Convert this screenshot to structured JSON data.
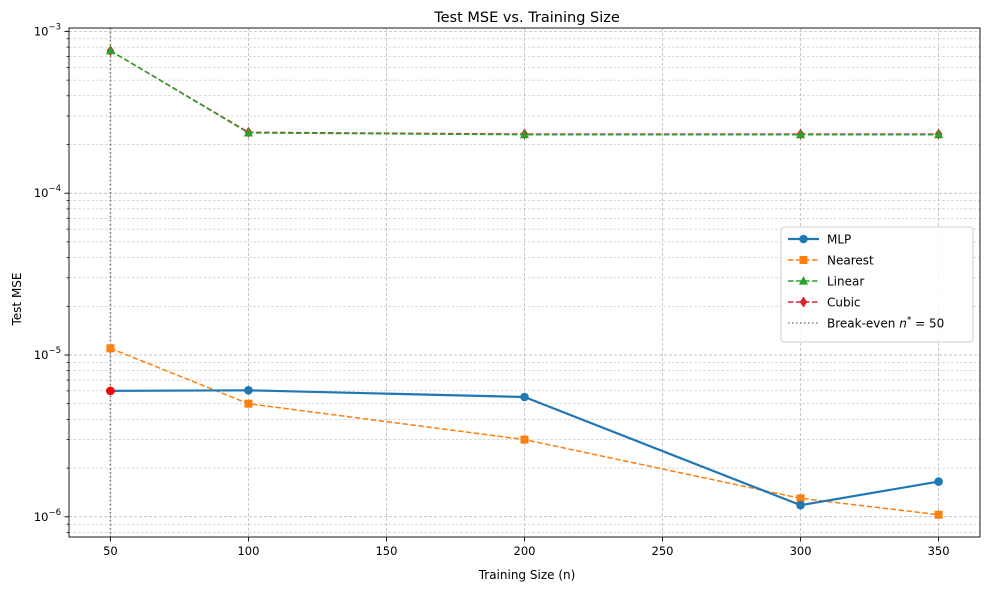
{
  "chart_data": {
    "type": "line",
    "title": "Test MSE vs. Training Size",
    "xlabel": "Training Size (n)",
    "ylabel": "Test MSE",
    "xlim": [
      35,
      365
    ],
    "ylim": [
      7.5e-07,
      0.00105
    ],
    "yscale": "log",
    "grid": true,
    "legend_position": "center-right",
    "x_ticks": [
      50,
      100,
      150,
      200,
      250,
      300,
      350
    ],
    "y_ticks": [
      {
        "value": 1e-06,
        "mantissa": "10",
        "exp": "−6"
      },
      {
        "value": 1e-05,
        "mantissa": "10",
        "exp": "−5"
      },
      {
        "value": 0.0001,
        "mantissa": "10",
        "exp": "−4"
      },
      {
        "value": 0.001,
        "mantissa": "10",
        "exp": "−3"
      }
    ],
    "x": [
      50,
      100,
      200,
      300,
      350
    ],
    "series": [
      {
        "name": "Cubic",
        "color": "#d62728",
        "marker": "diamond",
        "dash": true,
        "values": [
          0.00076,
          0.000238,
          0.000232,
          0.000232,
          0.000232
        ]
      },
      {
        "name": "Linear",
        "color": "#2ca02c",
        "marker": "triangle",
        "dash": true,
        "values": [
          0.00076,
          0.000236,
          0.00023,
          0.00023,
          0.00023
        ]
      },
      {
        "name": "Nearest",
        "color": "#ff7f0e",
        "marker": "square",
        "dash": true,
        "values": [
          1.1e-05,
          5e-06,
          3e-06,
          1.3e-06,
          1.03e-06
        ]
      },
      {
        "name": "MLP",
        "color": "#1f77b4",
        "marker": "circle",
        "dash": false,
        "values": [
          6e-06,
          6.05e-06,
          5.5e-06,
          1.18e-06,
          1.65e-06
        ]
      }
    ],
    "legend": [
      {
        "name": "MLP",
        "color": "#1f77b4",
        "marker": "circle",
        "dash": false
      },
      {
        "name": "Nearest",
        "color": "#ff7f0e",
        "marker": "square",
        "dash": true
      },
      {
        "name": "Linear",
        "color": "#2ca02c",
        "marker": "triangle",
        "dash": true
      },
      {
        "name": "Cubic",
        "color": "#d62728",
        "marker": "diamond",
        "dash": true
      },
      {
        "name": "Break-even",
        "label_prefix": "Break-even ",
        "label_var": "n",
        "label_sup": "*",
        "label_suffix": " = 50",
        "color": "#7f7f7f",
        "marker": "none",
        "dotted": true
      }
    ],
    "breakeven": {
      "x": 50,
      "y": 6e-06,
      "color": "#7f7f7f",
      "point_color": "#ff0000"
    }
  }
}
